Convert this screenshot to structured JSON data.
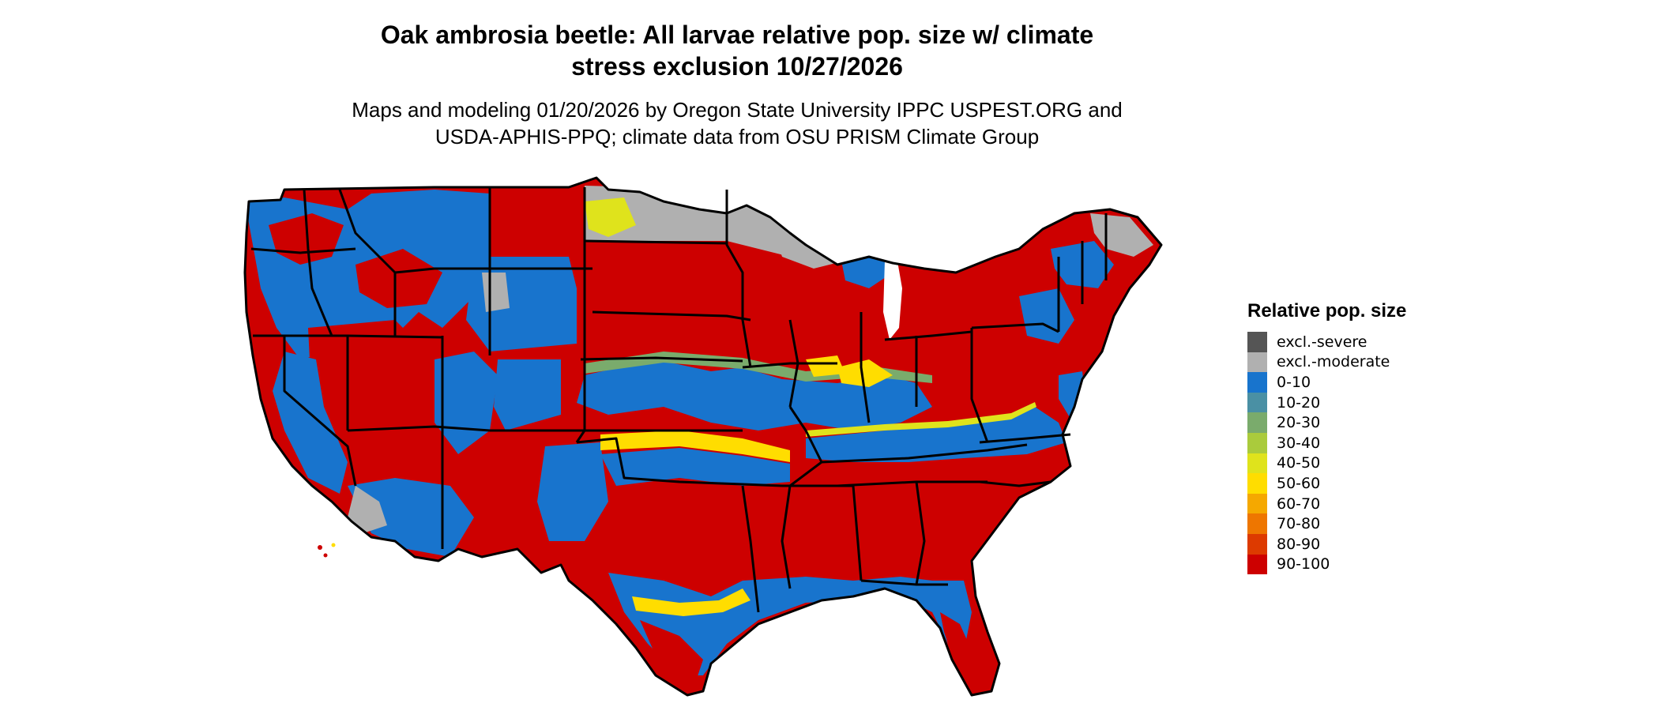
{
  "title": {
    "line1": "Oak ambrosia beetle: All larvae relative pop. size w/ climate",
    "line2": "stress exclusion 10/27/2026"
  },
  "subtitle": {
    "line1": "Maps and modeling 01/20/2026 by Oregon State University IPPC USPEST.ORG and",
    "line2": "USDA-APHIS-PPQ; climate data from OSU PRISM Climate Group"
  },
  "legend": {
    "title": "Relative pop. size",
    "items": [
      {
        "label": "excl.-severe",
        "color": "#555555"
      },
      {
        "label": "excl.-moderate",
        "color": "#b0b0b0"
      },
      {
        "label": "0-10",
        "color": "#1874cd"
      },
      {
        "label": "10-20",
        "color": "#4a90a4"
      },
      {
        "label": "20-30",
        "color": "#7aab6c"
      },
      {
        "label": "30-40",
        "color": "#aacb3c"
      },
      {
        "label": "40-50",
        "color": "#dfe31c"
      },
      {
        "label": "50-60",
        "color": "#ffdd00"
      },
      {
        "label": "60-70",
        "color": "#f5a800"
      },
      {
        "label": "70-80",
        "color": "#ee7600"
      },
      {
        "label": "80-90",
        "color": "#dd3a00"
      },
      {
        "label": "90-100",
        "color": "#cd0000"
      }
    ]
  },
  "map": {
    "region": "United States (contiguous)",
    "border_color": "#000000"
  }
}
